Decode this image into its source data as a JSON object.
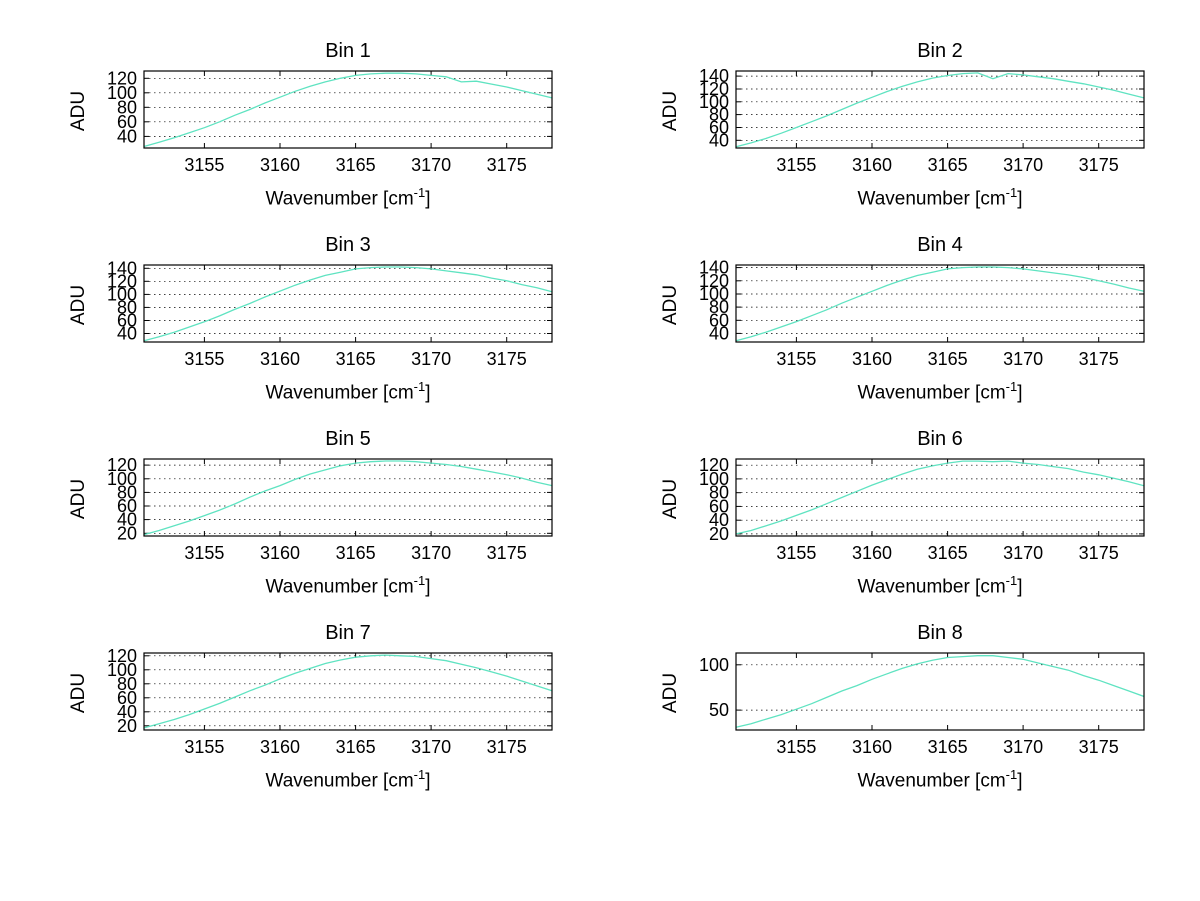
{
  "figure": {
    "background": "#ffffff"
  },
  "labels": {
    "ylabel": "ADU",
    "xlabel_main": "Wavenumber [cm",
    "xlabel_sup": "-1",
    "xlabel_close": "]"
  },
  "chart_data": {
    "type": "line",
    "line_color": "#5fe3c1",
    "grid": "horizontal-dotted",
    "legend": "none",
    "x": [
      3151,
      3152,
      3153,
      3154,
      3155,
      3156,
      3157,
      3158,
      3159,
      3160,
      3161,
      3162,
      3163,
      3164,
      3165,
      3166,
      3167,
      3168,
      3169,
      3170,
      3171,
      3172,
      3173,
      3174,
      3175,
      3176,
      3177,
      3178
    ],
    "xticks": [
      3155,
      3160,
      3165,
      3170,
      3175
    ],
    "xlim": [
      3151,
      3178
    ],
    "xlabel": "Wavenumber [cm-1]",
    "subplots": [
      {
        "title": "Bin 1",
        "values": [
          26,
          32,
          38,
          45,
          52,
          60,
          69,
          77,
          86,
          94,
          102,
          109,
          115,
          120,
          124,
          126,
          127,
          127,
          126,
          124,
          122,
          115,
          116,
          112,
          108,
          103,
          98,
          93
        ],
        "yticks": [
          40,
          60,
          80,
          100,
          120
        ],
        "ylim": [
          24,
          130
        ]
      },
      {
        "title": "Bin 2",
        "values": [
          30,
          36,
          43,
          51,
          60,
          69,
          78,
          88,
          98,
          107,
          116,
          124,
          131,
          137,
          141,
          144,
          145,
          136,
          144,
          142,
          139,
          136,
          132,
          128,
          123,
          118,
          112,
          106
        ],
        "yticks": [
          40,
          60,
          80,
          100,
          120,
          140
        ],
        "ylim": [
          28,
          148
        ]
      },
      {
        "title": "Bin 3",
        "values": [
          29,
          35,
          42,
          50,
          58,
          67,
          77,
          86,
          96,
          105,
          114,
          122,
          129,
          134,
          139,
          141,
          142,
          142,
          141,
          139,
          136,
          133,
          130,
          125,
          121,
          115,
          110,
          104
        ],
        "yticks": [
          40,
          60,
          80,
          100,
          120,
          140
        ],
        "ylim": [
          27,
          145
        ]
      },
      {
        "title": "Bin 4",
        "values": [
          29,
          35,
          42,
          50,
          58,
          67,
          76,
          86,
          95,
          104,
          113,
          121,
          128,
          133,
          138,
          140,
          141,
          141,
          140,
          138,
          135,
          132,
          129,
          125,
          120,
          115,
          109,
          104
        ],
        "yticks": [
          40,
          60,
          80,
          100,
          120,
          140
        ],
        "ylim": [
          27,
          144
        ]
      },
      {
        "title": "Bin 5",
        "values": [
          18,
          24,
          31,
          38,
          46,
          54,
          63,
          73,
          82,
          90,
          99,
          107,
          113,
          119,
          123,
          125,
          126,
          126,
          125,
          123,
          121,
          118,
          114,
          110,
          106,
          101,
          95,
          90
        ],
        "yticks": [
          20,
          40,
          60,
          80,
          100,
          120
        ],
        "ylim": [
          16,
          129
        ]
      },
      {
        "title": "Bin 6",
        "values": [
          20,
          25,
          32,
          39,
          47,
          55,
          64,
          73,
          82,
          91,
          99,
          107,
          114,
          119,
          123,
          126,
          126,
          125,
          126,
          123,
          121,
          118,
          115,
          110,
          106,
          101,
          96,
          90
        ],
        "yticks": [
          20,
          40,
          60,
          80,
          100,
          120
        ],
        "ylim": [
          17,
          129
        ]
      },
      {
        "title": "Bin 7",
        "values": [
          17,
          23,
          29,
          36,
          44,
          52,
          61,
          70,
          78,
          87,
          95,
          102,
          109,
          114,
          118,
          120,
          121,
          120,
          119,
          116,
          113,
          108,
          103,
          97,
          91,
          84,
          77,
          70
        ],
        "yticks": [
          20,
          40,
          60,
          80,
          100,
          120
        ],
        "ylim": [
          14,
          124
        ]
      },
      {
        "title": "Bin 8",
        "values": [
          31,
          35,
          40,
          45,
          51,
          57,
          64,
          71,
          77,
          84,
          90,
          96,
          101,
          105,
          108,
          109,
          110,
          110,
          108,
          106,
          102,
          98,
          94,
          88,
          83,
          77,
          71,
          65
        ],
        "yticks": [
          50,
          100
        ],
        "ylim": [
          28,
          113
        ]
      }
    ]
  }
}
